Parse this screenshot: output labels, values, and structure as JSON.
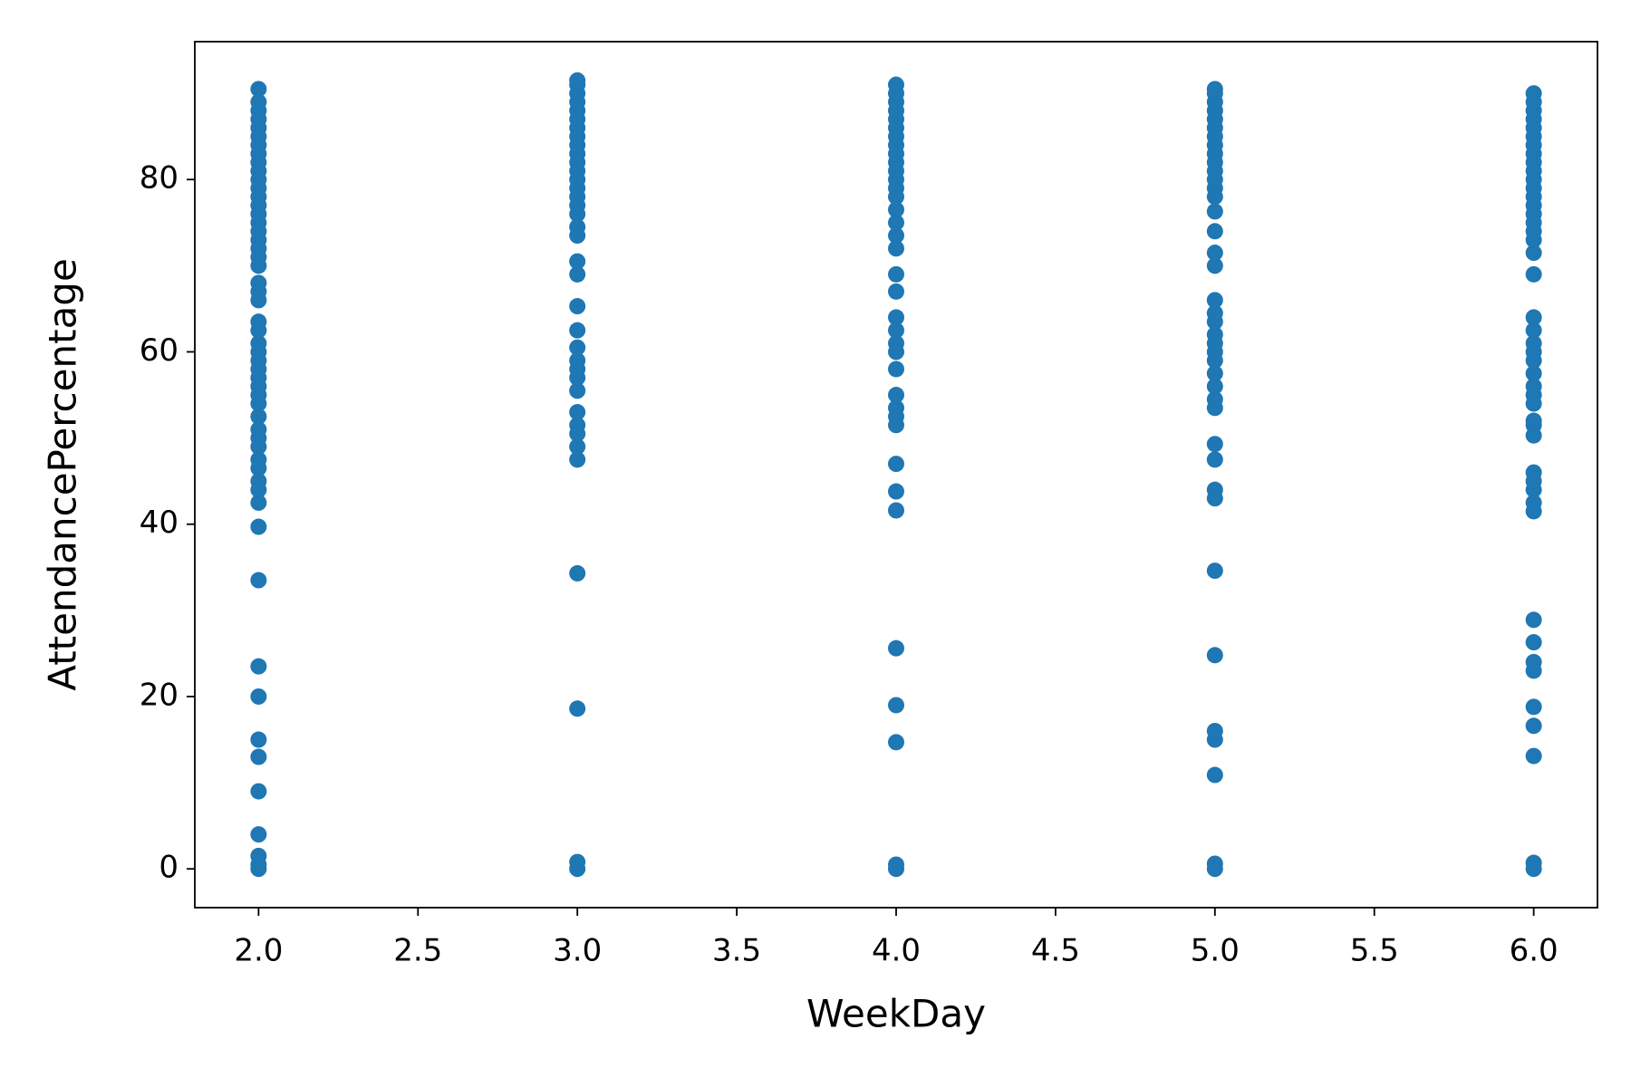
{
  "chart_data": {
    "type": "scatter",
    "x_label": "WeekDay",
    "y_label": "AttendancePercentage",
    "color": "#1f77b4",
    "xlim": [
      1.8,
      6.2
    ],
    "ylim": [
      -4.5,
      96
    ],
    "xticks": [
      {
        "value": 2,
        "label": "2.0"
      },
      {
        "value": 2.5,
        "label": "2.5"
      },
      {
        "value": 3,
        "label": "3.0"
      },
      {
        "value": 3.5,
        "label": "3.5"
      },
      {
        "value": 4,
        "label": "4.0"
      },
      {
        "value": 4.5,
        "label": "4.5"
      },
      {
        "value": 5,
        "label": "5.0"
      },
      {
        "value": 5.5,
        "label": "5.5"
      },
      {
        "value": 6,
        "label": "6.0"
      }
    ],
    "yticks": [
      0,
      20,
      40,
      60,
      80
    ],
    "x": [
      2,
      2,
      2,
      2,
      2,
      2,
      2,
      2,
      2,
      2,
      2,
      2,
      2,
      2,
      2,
      2,
      2,
      2,
      2,
      2,
      2,
      2,
      2,
      2,
      2,
      2,
      2,
      2,
      2,
      2,
      2,
      2,
      2,
      2,
      2,
      2,
      2,
      2,
      2,
      2,
      2,
      2,
      2,
      2,
      2,
      2,
      2,
      2,
      2,
      2,
      2,
      2,
      2,
      2,
      3,
      3,
      3,
      3,
      3,
      3,
      3,
      3,
      3,
      3,
      3,
      3,
      3,
      3,
      3,
      3,
      3,
      3,
      3,
      3,
      3,
      3,
      3,
      3,
      3,
      3,
      3,
      3,
      3,
      3,
      3,
      3,
      3,
      3,
      3,
      3,
      3,
      4,
      4,
      4,
      4,
      4,
      4,
      4,
      4,
      4,
      4,
      4,
      4,
      4,
      4,
      4,
      4,
      4,
      4,
      4,
      4,
      4,
      4,
      4,
      4,
      4,
      4,
      4,
      4,
      4,
      4,
      4,
      4,
      4,
      4,
      4,
      4,
      4,
      5,
      5,
      5,
      5,
      5,
      5,
      5,
      5,
      5,
      5,
      5,
      5,
      5,
      5,
      5,
      5,
      5,
      5,
      5,
      5,
      5,
      5,
      5,
      5,
      5,
      5,
      5,
      5,
      5,
      5,
      5,
      5,
      5,
      5,
      5,
      5,
      5,
      5,
      5,
      5,
      6,
      6,
      6,
      6,
      6,
      6,
      6,
      6,
      6,
      6,
      6,
      6,
      6,
      6,
      6,
      6,
      6,
      6,
      6,
      6,
      6,
      6,
      6,
      6,
      6,
      6,
      6,
      6,
      6,
      6,
      6,
      6,
      6,
      6,
      6,
      6,
      6,
      6,
      6,
      6,
      6,
      6,
      6,
      6,
      6,
      6
    ],
    "values": [
      0,
      0.5,
      1.5,
      4,
      9,
      13,
      15,
      20,
      23.5,
      33.5,
      39.7,
      42.5,
      44,
      45,
      46.5,
      47.5,
      49,
      50,
      51,
      52.5,
      54,
      55,
      56,
      57,
      58,
      59,
      60,
      61,
      62.5,
      63.5,
      66,
      67,
      68,
      70,
      71,
      72,
      73,
      74,
      75,
      76,
      77,
      78,
      79,
      80,
      81,
      82,
      83,
      84,
      85,
      86,
      87,
      88,
      89,
      90.5,
      0,
      0.8,
      18.6,
      34.3,
      47.5,
      49,
      50.5,
      51.5,
      53,
      55.5,
      57,
      58,
      59,
      60.5,
      62.5,
      65.3,
      69,
      70.5,
      73.5,
      74.5,
      76,
      77,
      78,
      79,
      80,
      81,
      82,
      83,
      84,
      85,
      86,
      87,
      88,
      89,
      90,
      91,
      91.5,
      0,
      0.5,
      14.7,
      19,
      25.6,
      41.6,
      43.8,
      47,
      51.5,
      52.5,
      53.5,
      55,
      58,
      60,
      61,
      62.5,
      64,
      67,
      69,
      72,
      73.5,
      75,
      76.5,
      78,
      79,
      80,
      81,
      82,
      83,
      84,
      85,
      86,
      87,
      88,
      89,
      90,
      91,
      0,
      0.6,
      10.9,
      15,
      16,
      24.8,
      34.6,
      43,
      44,
      47.5,
      49.3,
      53.5,
      54.5,
      56,
      57.5,
      59,
      60,
      61,
      62,
      63.5,
      64.5,
      66,
      70,
      71.5,
      74,
      76.3,
      78,
      79,
      80,
      81,
      82,
      83,
      84,
      85,
      86,
      87,
      88,
      89,
      90,
      90.5,
      0,
      0.7,
      13.1,
      16.6,
      18.8,
      23,
      24,
      26.3,
      28.9,
      41.5,
      42.5,
      44,
      45,
      46,
      50.3,
      51.5,
      52,
      54,
      55,
      56,
      57.5,
      59,
      60,
      61,
      62.5,
      64,
      69,
      71.5,
      73,
      74,
      75,
      76,
      77,
      78,
      79,
      80,
      81,
      82,
      83,
      84,
      85,
      86,
      87,
      88,
      89,
      90
    ]
  }
}
